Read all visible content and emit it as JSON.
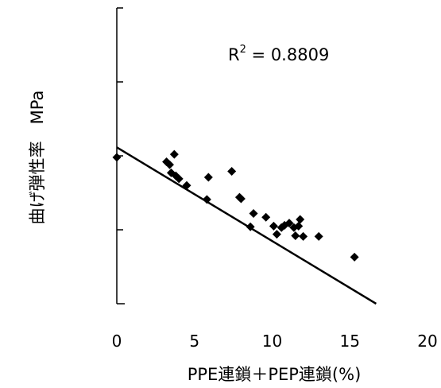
{
  "chart_data": {
    "type": "scatter",
    "title": "",
    "xlabel": "PPE連鎖＋PEP連鎖(%)",
    "ylabel": "曲げ弾性率　MPa",
    "xlim": [
      0,
      20
    ],
    "ylim": [
      0,
      4
    ],
    "x_ticks": [
      "0",
      "5",
      "10",
      "15",
      "20"
    ],
    "y_ticks_labeled": false,
    "grid": false,
    "legend": "none",
    "marker": "diamond",
    "marker_color": "#000000",
    "series": [
      {
        "points": [
          {
            "x": 0.0,
            "y": 1.98
          },
          {
            "x": 3.2,
            "y": 1.92
          },
          {
            "x": 3.4,
            "y": 1.88
          },
          {
            "x": 3.5,
            "y": 1.77
          },
          {
            "x": 3.7,
            "y": 2.02
          },
          {
            "x": 3.8,
            "y": 1.73
          },
          {
            "x": 4.0,
            "y": 1.69
          },
          {
            "x": 4.5,
            "y": 1.6
          },
          {
            "x": 5.8,
            "y": 1.41
          },
          {
            "x": 5.9,
            "y": 1.71
          },
          {
            "x": 7.4,
            "y": 1.79
          },
          {
            "x": 7.9,
            "y": 1.44
          },
          {
            "x": 8.0,
            "y": 1.42
          },
          {
            "x": 8.6,
            "y": 1.04
          },
          {
            "x": 8.8,
            "y": 1.22
          },
          {
            "x": 9.6,
            "y": 1.17
          },
          {
            "x": 10.1,
            "y": 1.05
          },
          {
            "x": 10.3,
            "y": 0.94
          },
          {
            "x": 10.6,
            "y": 1.03
          },
          {
            "x": 10.8,
            "y": 1.06
          },
          {
            "x": 11.1,
            "y": 1.09
          },
          {
            "x": 11.4,
            "y": 1.03
          },
          {
            "x": 11.5,
            "y": 0.92
          },
          {
            "x": 11.7,
            "y": 1.05
          },
          {
            "x": 11.8,
            "y": 1.14
          },
          {
            "x": 12.0,
            "y": 0.91
          },
          {
            "x": 13.0,
            "y": 0.91
          },
          {
            "x": 15.3,
            "y": 0.63
          }
        ]
      }
    ],
    "trendline": {
      "type": "linear",
      "slope": -0.1267,
      "intercept": 2.115
    },
    "annotation": {
      "label": "R",
      "superscript": "2",
      "value_text": " = 0.8809"
    }
  }
}
